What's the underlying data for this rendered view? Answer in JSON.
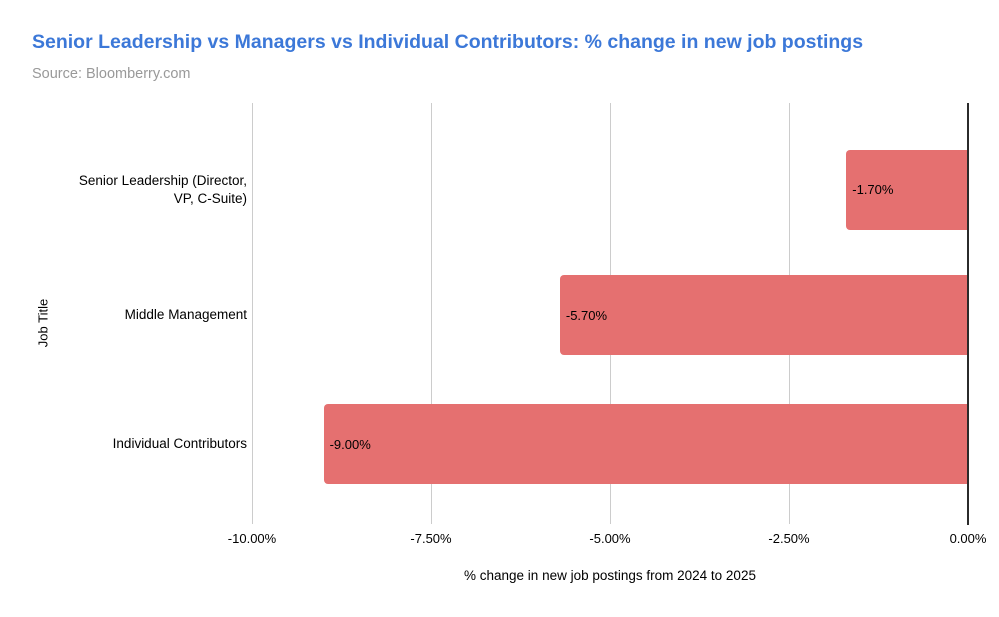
{
  "header": {
    "title": "Senior Leadership vs Managers vs Individual Contributors: % change in new job postings",
    "source": "Source: Bloomberry.com"
  },
  "colors": {
    "title": "#3C78D8",
    "source": "#999999",
    "bar": "#E57070",
    "gridline": "#CCCCCC",
    "axis_line": "#2B2B2B",
    "label_text": "#000000"
  },
  "chart_data": {
    "type": "bar",
    "orientation": "horizontal",
    "title": "Senior Leadership vs Managers vs Individual Contributors: % change in new job postings",
    "subtitle": "Source: Bloomberry.com",
    "xlabel": "% change in new job postings from 2024 to 2025",
    "ylabel": "Job Title",
    "categories": [
      "Senior Leadership (Director, VP, C-Suite)",
      "Middle Management",
      "Individual Contributors"
    ],
    "values": [
      -1.7,
      -5.7,
      -9.0
    ],
    "bar_labels": [
      "-1.70%",
      "-5.70%",
      "-9.00%"
    ],
    "xlim": [
      -10,
      0
    ],
    "x_tick_values": [
      -10,
      -7.5,
      -5,
      -2.5,
      0
    ],
    "x_tick_labels": [
      "-10.00%",
      "-7.50%",
      "-5.00%",
      "-2.50%",
      "0.00%"
    ],
    "grid": true,
    "legend": false,
    "bar_color": "#E57070"
  }
}
